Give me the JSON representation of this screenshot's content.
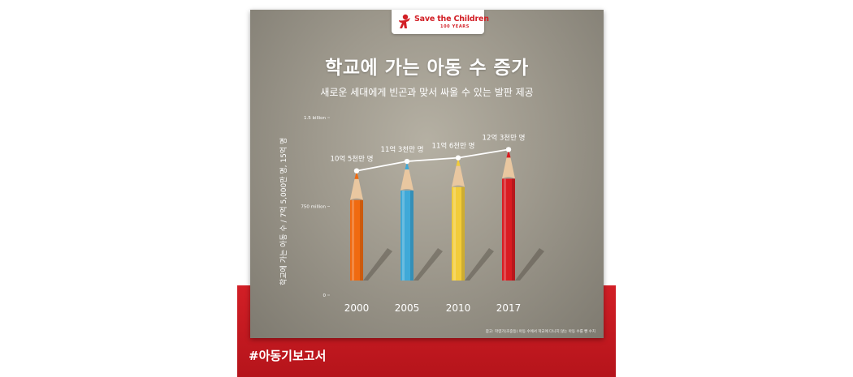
{
  "logo": {
    "name": "Save the Children",
    "sub": "100 YEARS"
  },
  "title": "학교에 가는 아동 수 증가",
  "subtitle": "새로운 세대에게 빈곤과 맞서 싸울 수 있는 발판 제공",
  "hashtag": "#아동기보고서",
  "footnote": "참고: 학령기(초중등) 아동 수에서 학교에 다니지 않는 아동 수를 뺀 수치",
  "colors": {
    "brand_red": "#d21f26",
    "pencils": [
      "#f06a10",
      "#3fa9d8",
      "#f2cc3a",
      "#d91c22"
    ],
    "line": "#ffffff"
  },
  "chart_data": {
    "type": "line",
    "title": "학교에 가는 아동 수 증가",
    "subtitle": "새로운 세대에게 빈곤과 맞서 싸울 수 있는 발판 제공",
    "ylabel": "학교에 가는 아동 수 / 7억 5,000만 명, 15억 명",
    "xlabel": "",
    "categories": [
      "2000",
      "2005",
      "2010",
      "2017"
    ],
    "values": [
      1050000000,
      1130000000,
      1160000000,
      1230000000
    ],
    "data_labels": [
      "10억 5천만 명",
      "11억 3천만 명",
      "11억 6천만 명",
      "12억 3천만 명"
    ],
    "yticks": [
      {
        "value": 0,
        "label": "0"
      },
      {
        "value": 750000000,
        "label": "750 million"
      },
      {
        "value": 1500000000,
        "label": "1.5 billion"
      }
    ],
    "ylim": [
      0,
      1500000000
    ],
    "grid": false,
    "legend": "none"
  }
}
